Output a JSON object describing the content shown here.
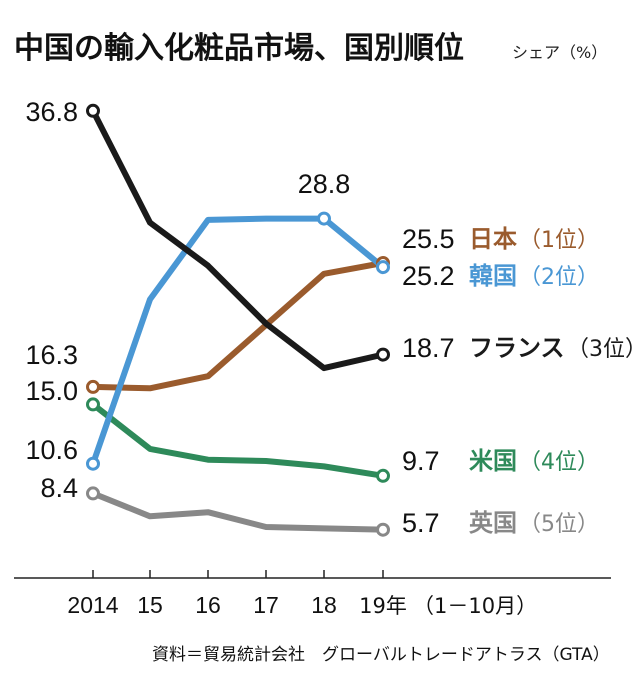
{
  "chart_data": {
    "type": "line",
    "title": "中国の輸入化粧品市場、国別順位",
    "unit_label": "シェア（%）",
    "categories": [
      "2014",
      "15",
      "16",
      "17",
      "18",
      "19年"
    ],
    "period_note": "（1－10月）",
    "ylim": [
      0,
      40
    ],
    "grid": false,
    "series": [
      {
        "name": "フランス",
        "rank": "（3位）",
        "color": "#1a1a1a",
        "values": [
          36.8,
          28.5,
          25.3,
          21.0,
          17.7,
          18.7
        ],
        "start_label": "36.8",
        "end_label": "18.7",
        "peak_label": null
      },
      {
        "name": "韓国",
        "rank": "（2位）",
        "color": "#4a97d4",
        "values": [
          10.6,
          22.8,
          28.7,
          28.8,
          28.8,
          25.2
        ],
        "start_label": "10.6",
        "end_label": "25.2",
        "peak_label": "28.8"
      },
      {
        "name": "日本",
        "rank": "（1位）",
        "color": "#9a5b2d",
        "values": [
          16.3,
          16.2,
          17.1,
          20.9,
          24.7,
          25.5
        ],
        "start_label": "16.3",
        "end_label": "25.5",
        "peak_label": null
      },
      {
        "name": "米国",
        "rank": "（4位）",
        "color": "#2e8a5a",
        "values": [
          15.0,
          11.7,
          10.9,
          10.8,
          10.4,
          9.7
        ],
        "start_label": "15.0",
        "end_label": "9.7",
        "peak_label": null
      },
      {
        "name": "英国",
        "rank": "（5位）",
        "color": "#888888",
        "values": [
          8.4,
          6.7,
          7.0,
          5.9,
          5.8,
          5.7
        ],
        "start_label": "8.4",
        "end_label": "5.7",
        "peak_label": null
      }
    ],
    "source": "資料＝貿易統計会社　グローバルトレードアトラス（GTA）"
  }
}
